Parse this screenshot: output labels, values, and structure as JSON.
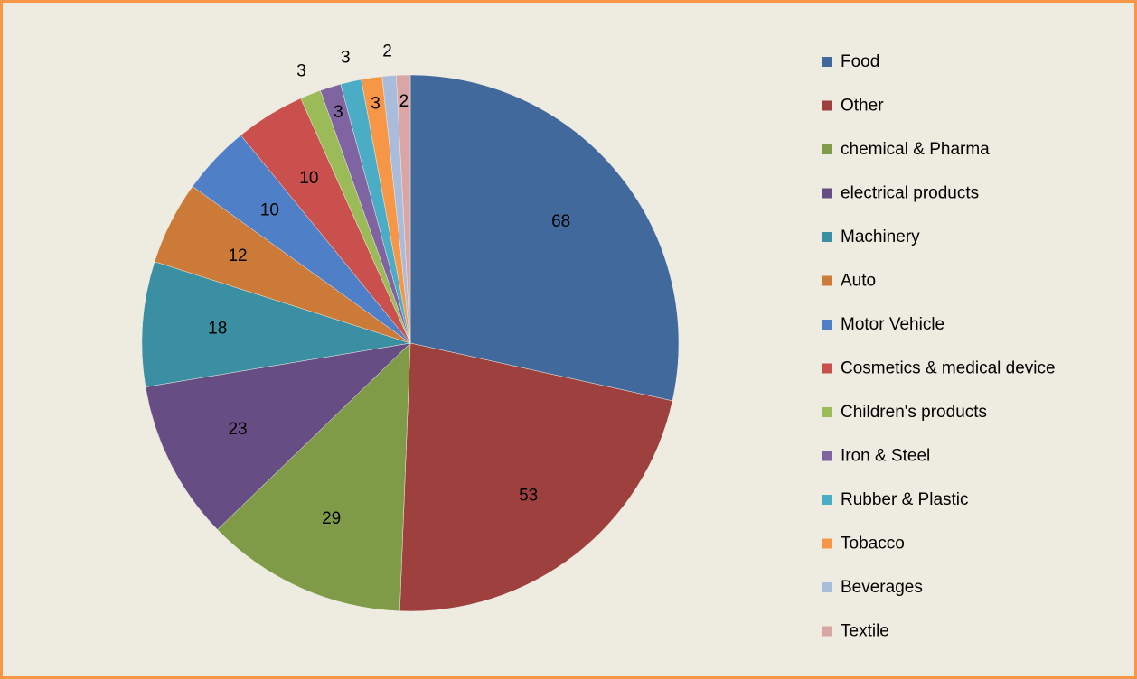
{
  "chart_data": {
    "type": "pie",
    "categories": [
      "Food",
      "Other",
      "chemical & Pharma",
      "electrical products",
      "Machinery",
      "Auto",
      "Motor Vehicle",
      "Cosmetics & medical device",
      "Children's products",
      "Iron & Steel",
      "Rubber & Plastic",
      "Tobacco",
      "Beverages",
      "Textile"
    ],
    "values": [
      68,
      53,
      29,
      23,
      18,
      12,
      10,
      10,
      3,
      3,
      3,
      3,
      2,
      2
    ],
    "colors": [
      "#41699C",
      "#9E413E",
      "#7F9B48",
      "#664E85",
      "#3A8FA3",
      "#CC7A37",
      "#4F80C7",
      "#C9504D",
      "#9BBB59",
      "#8064A2",
      "#4BACC6",
      "#F79646",
      "#A9BCDC",
      "#D9A6A5"
    ],
    "legend": "right"
  }
}
